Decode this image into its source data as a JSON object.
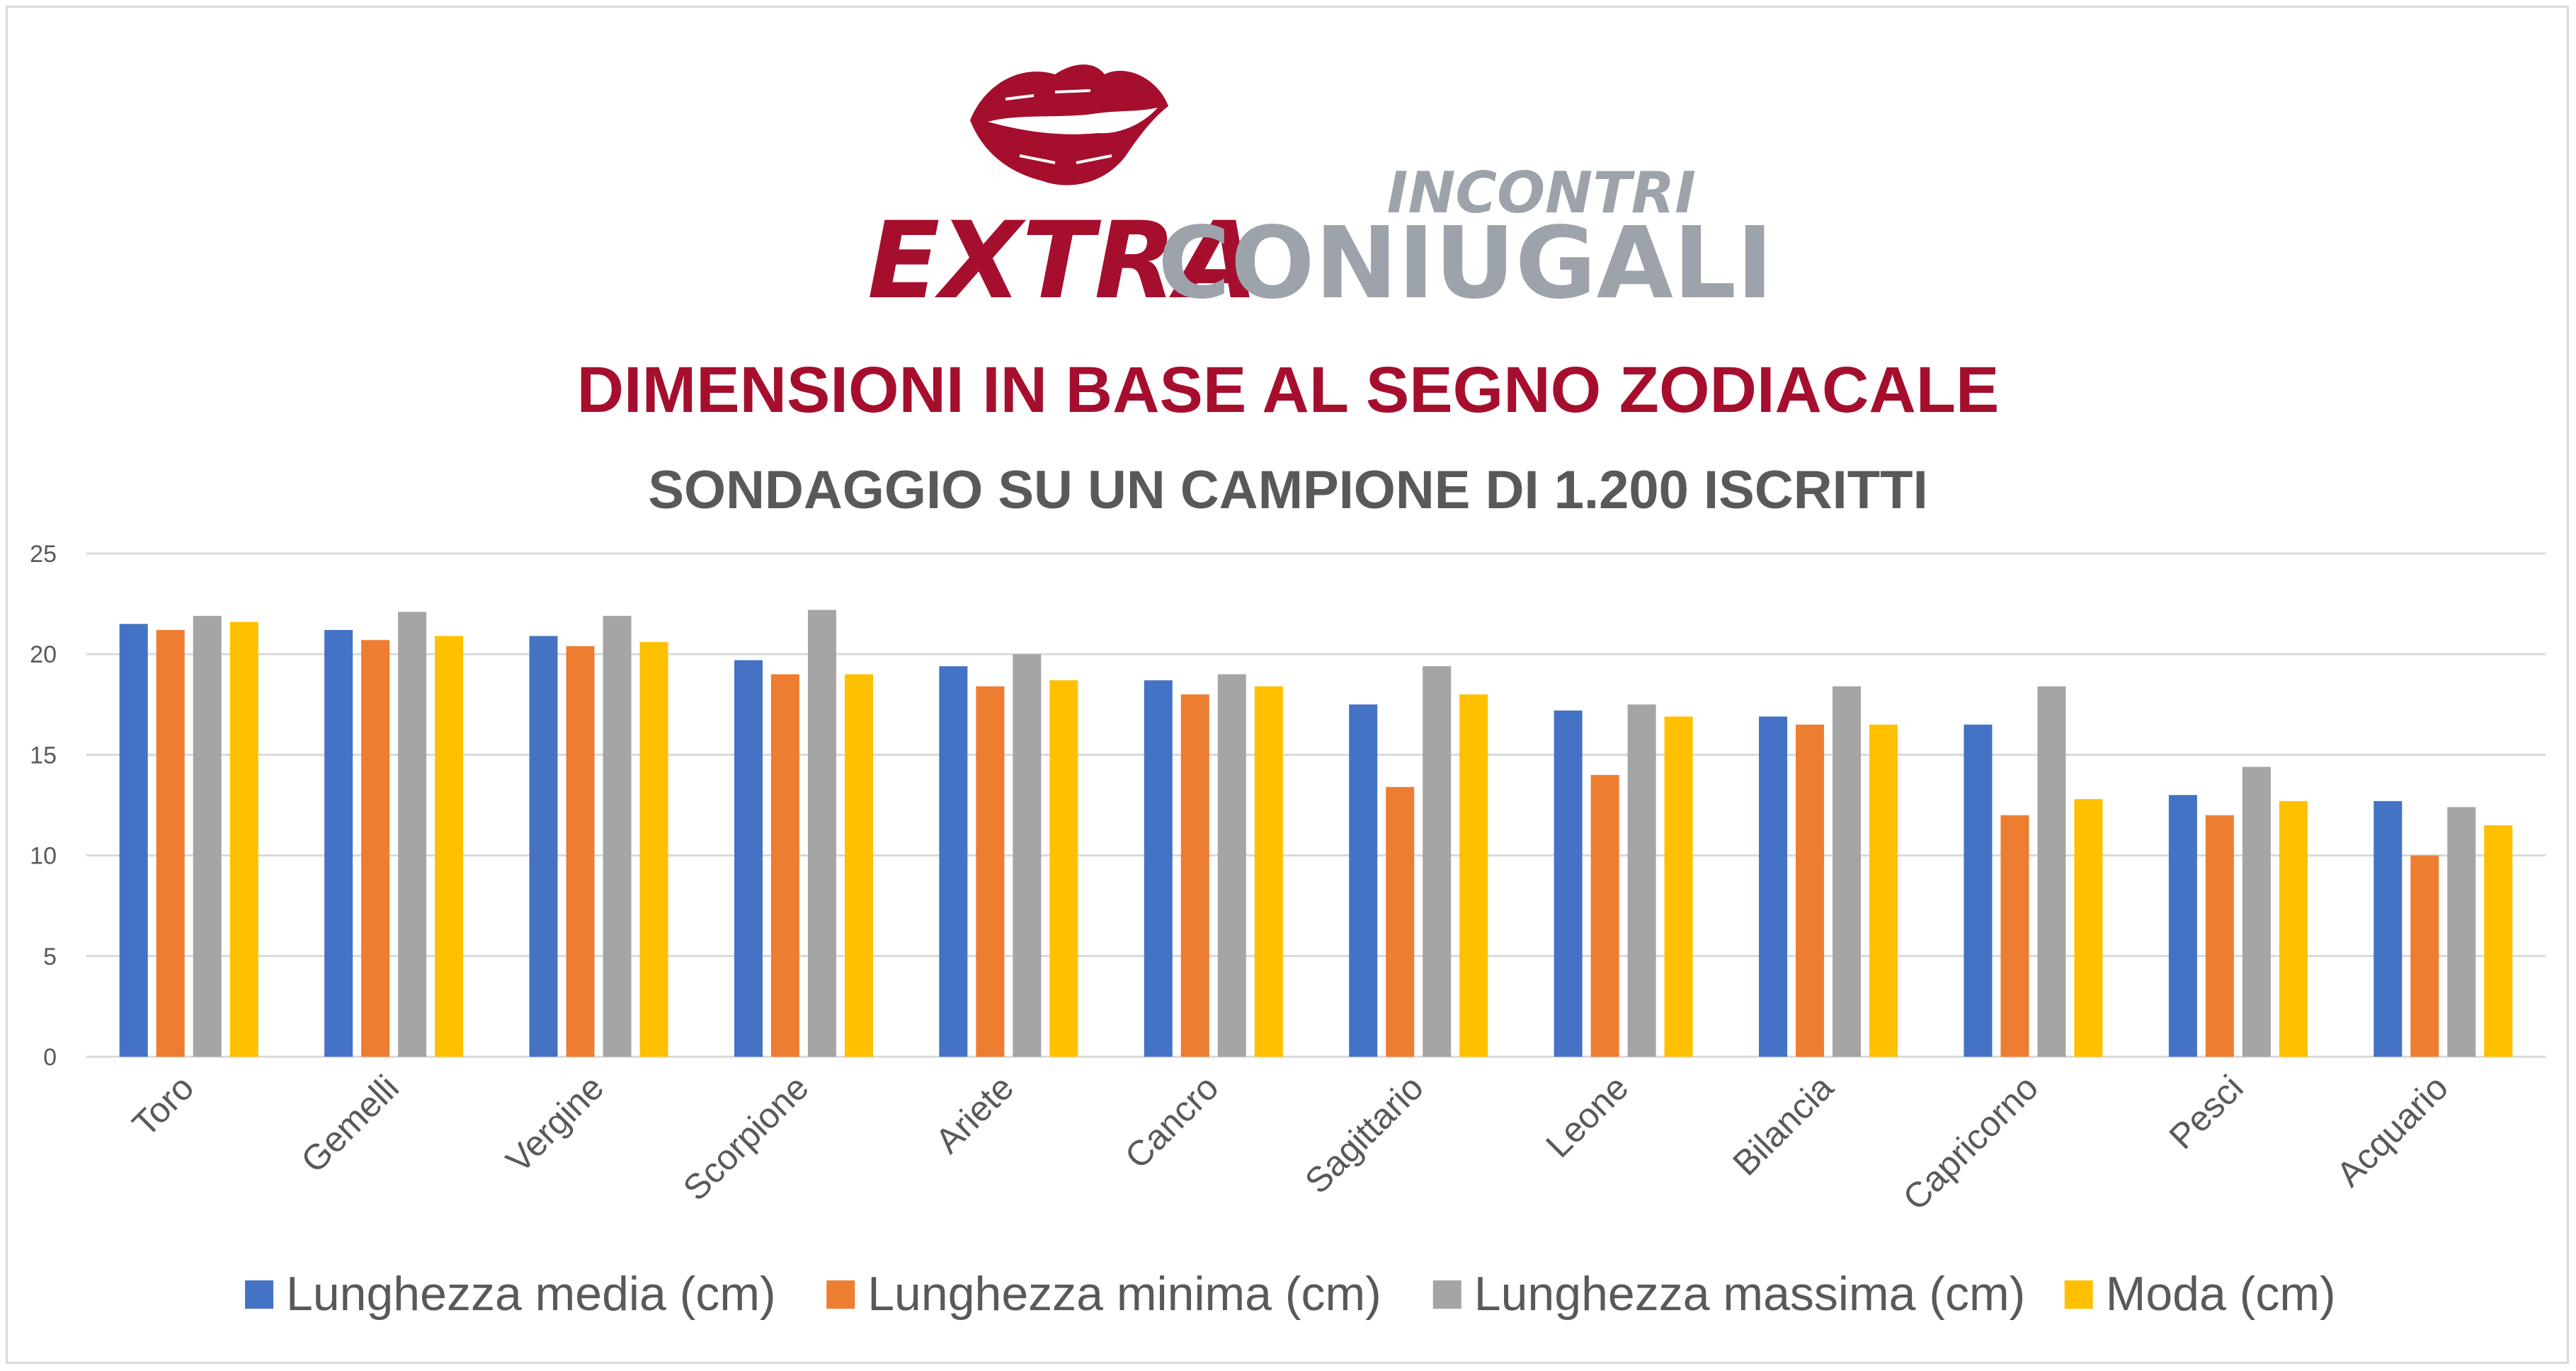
{
  "logo": {
    "top_word": "INCONTRI",
    "word_red": "EXTRA",
    "word_grey": "CONIUGALI"
  },
  "colors": {
    "title_red": "#a50f2d",
    "subtitle_grey": "#595959",
    "logo_grey": "#9da3ab",
    "grid": "#d9d9d9",
    "tick_text": "#595959"
  },
  "chart_data": {
    "type": "bar",
    "title": "DIMENSIONI IN BASE AL SEGNO ZODIACALE",
    "subtitle": "SONDAGGIO SU UN CAMPIONE DI 1.200 ISCRITTI",
    "categories": [
      "Toro",
      "Gemelli",
      "Vergine",
      "Scorpione",
      "Ariete",
      "Cancro",
      "Sagittario",
      "Leone",
      "Bilancia",
      "Capricorno",
      "Pesci",
      "Acquario"
    ],
    "series": [
      {
        "name": "Lunghezza media (cm)",
        "color": "#4472c4",
        "values": [
          21.5,
          21.2,
          20.9,
          19.7,
          19.4,
          18.7,
          17.5,
          17.2,
          16.9,
          16.5,
          13.0,
          12.7
        ]
      },
      {
        "name": "Lunghezza minima (cm)",
        "color": "#ed7d31",
        "values": [
          21.2,
          20.7,
          20.4,
          19.0,
          18.4,
          18.0,
          13.4,
          14.0,
          16.5,
          12.0,
          12.0,
          10.0
        ]
      },
      {
        "name": "Lunghezza massima (cm)",
        "color": "#a5a5a5",
        "values": [
          21.9,
          22.1,
          21.9,
          22.2,
          20.0,
          19.0,
          19.4,
          17.5,
          18.4,
          18.4,
          14.4,
          12.4
        ]
      },
      {
        "name": "Moda (cm)",
        "color": "#ffc000",
        "values": [
          21.6,
          20.9,
          20.6,
          19.0,
          18.7,
          18.4,
          18.0,
          16.9,
          16.5,
          12.8,
          12.7,
          11.5
        ]
      }
    ],
    "ylim": [
      0,
      25
    ],
    "yticks": [
      0,
      5,
      10,
      15,
      20,
      25
    ],
    "grid": true,
    "legend_position": "bottom"
  }
}
